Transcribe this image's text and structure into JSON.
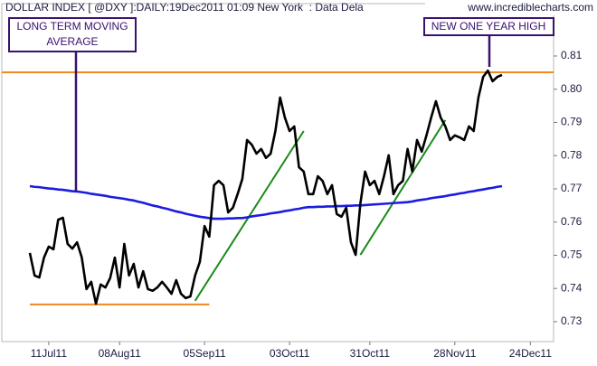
{
  "chart_data": {
    "type": "line",
    "title": "DOLLAR INDEX [ @DXY ]:DAILY:19Dec2011 01:09 New York  : Data Dela",
    "source": "www.incrediblecharts.com",
    "categories": [
      null,
      null,
      null,
      null,
      "11Jul11",
      null,
      null,
      null,
      null,
      null,
      null,
      null,
      null,
      null,
      null,
      null,
      null,
      null,
      null,
      "08Aug11",
      null,
      null,
      null,
      null,
      null,
      null,
      null,
      null,
      null,
      null,
      null,
      null,
      null,
      null,
      null,
      null,
      null,
      "05Sep11",
      null,
      null,
      null,
      null,
      null,
      null,
      null,
      null,
      null,
      null,
      null,
      null,
      null,
      null,
      null,
      null,
      null,
      "03Oct11",
      null,
      null,
      null,
      null,
      null,
      null,
      null,
      null,
      null,
      null,
      null,
      null,
      null,
      null,
      null,
      null,
      "31Oct11",
      null,
      null,
      null,
      null,
      null,
      null,
      null,
      null,
      null,
      null,
      null,
      null,
      null,
      null,
      null,
      null,
      null,
      "28Nov11",
      null,
      null,
      null,
      null,
      null,
      null,
      null,
      null,
      null,
      null,
      null,
      null,
      null,
      null,
      null,
      "24Dec11"
    ],
    "series": [
      {
        "color": "#000000",
        "values": [
          0.7507,
          0.7439,
          0.7433,
          0.7493,
          0.7526,
          0.7518,
          0.7607,
          0.7613,
          0.7534,
          0.752,
          0.7539,
          0.7493,
          0.7398,
          0.742,
          0.7354,
          0.7412,
          0.7403,
          0.7431,
          0.7493,
          0.7403,
          0.7534,
          0.7439,
          0.7474,
          0.7403,
          0.7452,
          0.7398,
          0.7393,
          0.7403,
          0.742,
          0.7403,
          0.7384,
          0.7425,
          0.7384,
          0.7371,
          0.7376,
          0.7439,
          0.748,
          0.7588,
          0.7556,
          0.7711,
          0.7724,
          0.7711,
          0.7629,
          0.7643,
          0.7684,
          0.773,
          0.7847,
          0.7833,
          0.7806,
          0.782,
          0.7793,
          0.7806,
          0.7874,
          0.7975,
          0.7915,
          0.7874,
          0.7888,
          0.7765,
          0.7752,
          0.7684,
          0.7684,
          0.7738,
          0.7724,
          0.7684,
          0.7711,
          0.7624,
          0.7616,
          0.7643,
          0.7539,
          0.7501,
          0.7656,
          0.7752,
          0.7711,
          0.7724,
          0.7684,
          0.7738,
          0.7801,
          0.7684,
          0.7711,
          0.7724,
          0.782,
          0.7752,
          0.7847,
          0.7812,
          0.7861,
          0.7915,
          0.7964,
          0.7915,
          0.7888,
          0.7847,
          0.7861,
          0.7855,
          0.7847,
          0.7888,
          0.7874,
          0.7975,
          0.8037,
          0.8056,
          0.8024,
          0.8037,
          0.8043,
          null,
          null,
          null,
          null,
          null,
          null
        ]
      },
      {
        "color": "#1c1ce0",
        "values": [
          0.7708,
          0.7706,
          0.7705,
          0.7703,
          0.7701,
          0.77,
          0.7698,
          0.7697,
          0.7695,
          0.7693,
          0.7692,
          0.769,
          0.7688,
          0.7685,
          0.7683,
          0.7681,
          0.7679,
          0.7676,
          0.7674,
          0.7672,
          0.767,
          0.7667,
          0.7665,
          0.7661,
          0.7658,
          0.7654,
          0.765,
          0.7647,
          0.7643,
          0.764,
          0.7636,
          0.7632,
          0.7629,
          0.7625,
          0.7622,
          0.7619,
          0.7616,
          0.7614,
          0.7612,
          0.761,
          0.761,
          0.761,
          0.7611,
          0.7611,
          0.7612,
          0.7612,
          0.7614,
          0.7617,
          0.7619,
          0.7621,
          0.7623,
          0.7626,
          0.7628,
          0.763,
          0.7633,
          0.7635,
          0.7638,
          0.764,
          0.7643,
          0.7645,
          0.7645,
          0.7646,
          0.7646,
          0.7647,
          0.7647,
          0.7648,
          0.7648,
          0.7649,
          0.7649,
          0.765,
          0.765,
          0.7651,
          0.7652,
          0.7653,
          0.7654,
          0.7655,
          0.7656,
          0.7657,
          0.7658,
          0.7659,
          0.766,
          0.7662,
          0.7665,
          0.7667,
          0.7669,
          0.7672,
          0.7674,
          0.7676,
          0.7678,
          0.7681,
          0.7683,
          0.7686,
          0.7688,
          0.7691,
          0.7693,
          0.7696,
          0.7698,
          0.7701,
          0.7703,
          0.7706,
          0.7708,
          null,
          null,
          null,
          null,
          null,
          null
        ]
      }
    ],
    "hlines": [
      {
        "value": 0.8051,
        "color": "#f08a1c"
      }
    ],
    "trend_lines": [
      {
        "from": [
          0,
          0.7352
        ],
        "to": [
          38,
          0.7352
        ],
        "color": "#f08a1c"
      },
      {
        "from": [
          35,
          0.7363
        ],
        "to": [
          58,
          0.7874
        ],
        "color": "#1a8a1a"
      },
      {
        "from": [
          70,
          0.7501
        ],
        "to": [
          88,
          0.7907
        ],
        "color": "#1a8a1a"
      }
    ],
    "annotations": [
      {
        "lines": [
          "LONG TERM MOVING",
          "AVERAGE"
        ]
      },
      {
        "lines": [
          "NEW ONE YEAR HIGH"
        ]
      }
    ],
    "ylim": [
      0.724,
      0.8255
    ],
    "yticks": [
      0.73,
      0.74,
      0.75,
      0.76,
      0.77,
      0.78,
      0.79,
      {
        "value": 0.8,
        "label": "0.80"
      },
      0.81
    ]
  }
}
